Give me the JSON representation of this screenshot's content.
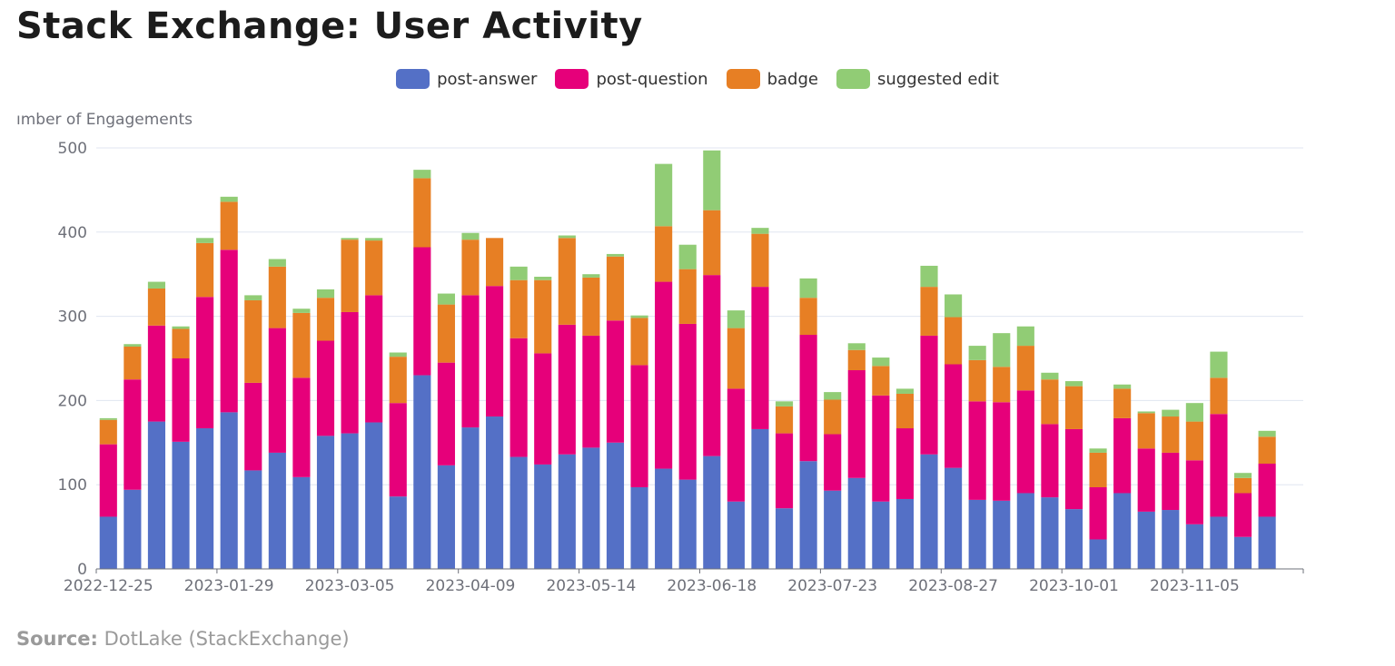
{
  "page": {
    "title": "Stack Exchange: User Activity",
    "source_label": "Source:",
    "source_text": "DotLake (StackExchange)"
  },
  "chart_data": {
    "type": "bar",
    "stacked": true,
    "ylabel": "Number of Engagements",
    "ylabel_visible": "ımber of Engagements",
    "ylim": [
      0,
      500
    ],
    "yticks": [
      0,
      100,
      200,
      300,
      400,
      500
    ],
    "grid": "horizontal",
    "legend_position": "top-center",
    "xtick_labels": [
      "2022-12-25",
      "2023-01-29",
      "2023-03-05",
      "2023-04-09",
      "2023-05-14",
      "2023-06-18",
      "2023-07-23",
      "2023-08-27",
      "2023-10-01",
      "2023-11-05"
    ],
    "xtick_every": 5,
    "categories": [
      "2022-12-25",
      "2023-01-01",
      "2023-01-08",
      "2023-01-15",
      "2023-01-22",
      "2023-01-29",
      "2023-02-05",
      "2023-02-12",
      "2023-02-19",
      "2023-02-26",
      "2023-03-05",
      "2023-03-12",
      "2023-03-19",
      "2023-03-26",
      "2023-04-02",
      "2023-04-09",
      "2023-04-16",
      "2023-04-23",
      "2023-04-30",
      "2023-05-07",
      "2023-05-14",
      "2023-05-21",
      "2023-05-28",
      "2023-06-04",
      "2023-06-11",
      "2023-06-18",
      "2023-06-25",
      "2023-07-02",
      "2023-07-09",
      "2023-07-16",
      "2023-07-23",
      "2023-07-30",
      "2023-08-06",
      "2023-08-13",
      "2023-08-20",
      "2023-08-27",
      "2023-09-03",
      "2023-09-10",
      "2023-09-17",
      "2023-09-24",
      "2023-10-01",
      "2023-10-08",
      "2023-10-15",
      "2023-10-22",
      "2023-10-29",
      "2023-11-05",
      "2023-11-12",
      "2023-11-19",
      "2023-11-26",
      "2023-12-03"
    ],
    "series": [
      {
        "name": "post-answer",
        "color": "#5470c6",
        "values": [
          62,
          94,
          175,
          151,
          167,
          186,
          117,
          138,
          109,
          158,
          161,
          174,
          86,
          230,
          123,
          168,
          181,
          133,
          124,
          136,
          144,
          150,
          97,
          119,
          106,
          134,
          80,
          166,
          72,
          128,
          93,
          108,
          80,
          83,
          136,
          120,
          82,
          81,
          90,
          85,
          71,
          35,
          90,
          68,
          70,
          53,
          62,
          38,
          62,
          0
        ]
      },
      {
        "name": "post-question",
        "color": "#e6007a",
        "values": [
          86,
          131,
          114,
          99,
          156,
          193,
          104,
          148,
          118,
          113,
          144,
          151,
          111,
          152,
          122,
          157,
          155,
          141,
          132,
          154,
          133,
          145,
          145,
          222,
          185,
          215,
          134,
          169,
          89,
          150,
          67,
          128,
          126,
          84,
          141,
          123,
          117,
          117,
          122,
          87,
          95,
          62,
          89,
          75,
          68,
          76,
          122,
          52,
          63,
          0
        ]
      },
      {
        "name": "badge",
        "color": "#e77f24",
        "values": [
          29,
          39,
          44,
          35,
          64,
          57,
          98,
          73,
          77,
          51,
          86,
          65,
          55,
          82,
          69,
          66,
          57,
          69,
          87,
          103,
          69,
          76,
          56,
          66,
          65,
          77,
          72,
          63,
          32,
          44,
          41,
          24,
          35,
          41,
          58,
          56,
          49,
          42,
          53,
          53,
          51,
          41,
          35,
          42,
          43,
          46,
          43,
          18,
          32,
          0
        ]
      },
      {
        "name": "suggested edit",
        "color": "#91cc75",
        "values": [
          2,
          3,
          8,
          3,
          6,
          6,
          6,
          9,
          5,
          10,
          2,
          3,
          5,
          10,
          13,
          8,
          0,
          16,
          4,
          3,
          4,
          3,
          3,
          74,
          29,
          71,
          21,
          7,
          6,
          23,
          9,
          8,
          10,
          6,
          25,
          27,
          17,
          40,
          23,
          8,
          6,
          5,
          5,
          2,
          8,
          22,
          31,
          6,
          7,
          0
        ]
      }
    ]
  }
}
